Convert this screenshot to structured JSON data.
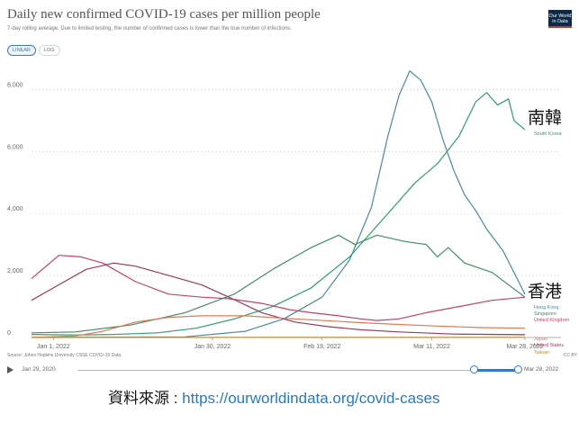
{
  "header": {
    "title": "Daily new confirmed COVID-19 cases per million people",
    "subtitle": "7-day rolling average. Due to limited testing, the number of confirmed cases is lower than the true number of infections.",
    "logo_line1": "Our World",
    "logo_line2": "in Data"
  },
  "controls": {
    "linear_label": "LINEAR",
    "log_label": "LOG",
    "active": "LINEAR"
  },
  "footer_bar": {
    "source": "Source: Johns Hopkins University CSSE COVID-19 Data",
    "license": "CC BY",
    "timeline_start": "Jan 29, 2020",
    "timeline_end": "Mar 28, 2022"
  },
  "annotation": {
    "label": "資料來源 : ",
    "url": "https://ourworldindata.org/covid-cases",
    "korea_zh": "南韓",
    "hongkong_zh": "香港"
  },
  "chart_data": {
    "type": "line",
    "title": "Daily new confirmed COVID-19 cases per million people",
    "ylim": [
      0,
      9000
    ],
    "y_ticks": [
      0,
      2000,
      4000,
      6000,
      8000
    ],
    "y_tick_labels": [
      "0",
      "2,000",
      "4,000",
      "6,000",
      "8,000"
    ],
    "x_range": [
      "2021-12-28",
      "2022-03-28"
    ],
    "x_tick_dates": [
      "2022-01-01",
      "2022-01-30",
      "2022-02-19",
      "2022-03-11",
      "2022-03-28"
    ],
    "x_tick_labels": [
      "Jan 1, 2022",
      "Jan 30, 2022",
      "Feb 19, 2022",
      "Mar 11, 2022",
      "Mar 28, 2022"
    ],
    "grid": true,
    "series": [
      {
        "name": "South Korea",
        "color": "#2f9e6b",
        "points": [
          [
            "2021-12-28",
            100
          ],
          [
            "2022-01-05",
            80
          ],
          [
            "2022-01-12",
            100
          ],
          [
            "2022-01-20",
            150
          ],
          [
            "2022-01-27",
            300
          ],
          [
            "2022-02-03",
            600
          ],
          [
            "2022-02-10",
            1000
          ],
          [
            "2022-02-17",
            1600
          ],
          [
            "2022-02-24",
            2600
          ],
          [
            "2022-03-02",
            3800
          ],
          [
            "2022-03-08",
            5000
          ],
          [
            "2022-03-12",
            5600
          ],
          [
            "2022-03-16",
            6500
          ],
          [
            "2022-03-19",
            7600
          ],
          [
            "2022-03-21",
            7900
          ],
          [
            "2022-03-23",
            7500
          ],
          [
            "2022-03-25",
            7700
          ],
          [
            "2022-03-26",
            7000
          ],
          [
            "2022-03-28",
            6700
          ]
        ]
      },
      {
        "name": "Hong Kong",
        "color": "#4a8a9c",
        "points": [
          [
            "2021-12-28",
            5
          ],
          [
            "2022-01-10",
            10
          ],
          [
            "2022-01-25",
            20
          ],
          [
            "2022-02-05",
            200
          ],
          [
            "2022-02-12",
            600
          ],
          [
            "2022-02-19",
            1300
          ],
          [
            "2022-02-24",
            2500
          ],
          [
            "2022-02-28",
            4200
          ],
          [
            "2022-03-03",
            6500
          ],
          [
            "2022-03-05",
            7800
          ],
          [
            "2022-03-07",
            8600
          ],
          [
            "2022-03-09",
            8300
          ],
          [
            "2022-03-11",
            7600
          ],
          [
            "2022-03-13",
            6400
          ],
          [
            "2022-03-15",
            5400
          ],
          [
            "2022-03-17",
            4600
          ],
          [
            "2022-03-19",
            4100
          ],
          [
            "2022-03-21",
            3500
          ],
          [
            "2022-03-24",
            2800
          ],
          [
            "2022-03-28",
            1400
          ]
        ]
      },
      {
        "name": "Singapore",
        "color": "#3f8f65",
        "points": [
          [
            "2021-12-28",
            150
          ],
          [
            "2022-01-05",
            180
          ],
          [
            "2022-01-15",
            400
          ],
          [
            "2022-01-25",
            800
          ],
          [
            "2022-02-03",
            1400
          ],
          [
            "2022-02-10",
            2200
          ],
          [
            "2022-02-17",
            2900
          ],
          [
            "2022-02-22",
            3300
          ],
          [
            "2022-02-25",
            3000
          ],
          [
            "2022-03-01",
            3300
          ],
          [
            "2022-03-06",
            3100
          ],
          [
            "2022-03-10",
            3000
          ],
          [
            "2022-03-12",
            2600
          ],
          [
            "2022-03-14",
            2900
          ],
          [
            "2022-03-17",
            2400
          ],
          [
            "2022-03-22",
            2100
          ],
          [
            "2022-03-28",
            1300
          ]
        ]
      },
      {
        "name": "United Kingdom",
        "color": "#c2406a",
        "points": [
          [
            "2021-12-28",
            1900
          ],
          [
            "2022-01-02",
            2650
          ],
          [
            "2022-01-06",
            2600
          ],
          [
            "2022-01-10",
            2400
          ],
          [
            "2022-01-16",
            1800
          ],
          [
            "2022-01-22",
            1400
          ],
          [
            "2022-01-28",
            1300
          ],
          [
            "2022-02-02",
            1250
          ],
          [
            "2022-02-08",
            1100
          ],
          [
            "2022-02-13",
            900
          ],
          [
            "2022-02-17",
            800
          ],
          [
            "2022-02-22",
            700
          ],
          [
            "2022-02-26",
            600
          ],
          [
            "2022-03-01",
            550
          ],
          [
            "2022-03-05",
            600
          ],
          [
            "2022-03-10",
            800
          ],
          [
            "2022-03-16",
            1000
          ],
          [
            "2022-03-22",
            1200
          ],
          [
            "2022-03-28",
            1300
          ]
        ]
      },
      {
        "name": "United States",
        "color": "#9b3a5e",
        "points": [
          [
            "2021-12-28",
            1200
          ],
          [
            "2022-01-02",
            1700
          ],
          [
            "2022-01-07",
            2200
          ],
          [
            "2022-01-12",
            2400
          ],
          [
            "2022-01-16",
            2300
          ],
          [
            "2022-01-22",
            2000
          ],
          [
            "2022-01-28",
            1700
          ],
          [
            "2022-02-02",
            1300
          ],
          [
            "2022-02-08",
            800
          ],
          [
            "2022-02-14",
            500
          ],
          [
            "2022-02-20",
            350
          ],
          [
            "2022-02-26",
            250
          ],
          [
            "2022-03-05",
            180
          ],
          [
            "2022-03-15",
            110
          ],
          [
            "2022-03-28",
            90
          ]
        ]
      },
      {
        "name": "Japan",
        "color": "#e07a55",
        "points": [
          [
            "2021-12-28",
            5
          ],
          [
            "2022-01-05",
            50
          ],
          [
            "2022-01-10",
            200
          ],
          [
            "2022-01-16",
            500
          ],
          [
            "2022-01-22",
            650
          ],
          [
            "2022-01-28",
            700
          ],
          [
            "2022-02-05",
            700
          ],
          [
            "2022-02-12",
            620
          ],
          [
            "2022-02-18",
            560
          ],
          [
            "2022-02-26",
            480
          ],
          [
            "2022-03-05",
            420
          ],
          [
            "2022-03-12",
            370
          ],
          [
            "2022-03-20",
            320
          ],
          [
            "2022-03-28",
            300
          ]
        ]
      },
      {
        "name": "Taiwan",
        "color": "#c98a2e",
        "points": [
          [
            "2021-12-28",
            1
          ],
          [
            "2022-02-01",
            2
          ],
          [
            "2022-03-01",
            2
          ],
          [
            "2022-03-28",
            5
          ]
        ]
      }
    ]
  }
}
